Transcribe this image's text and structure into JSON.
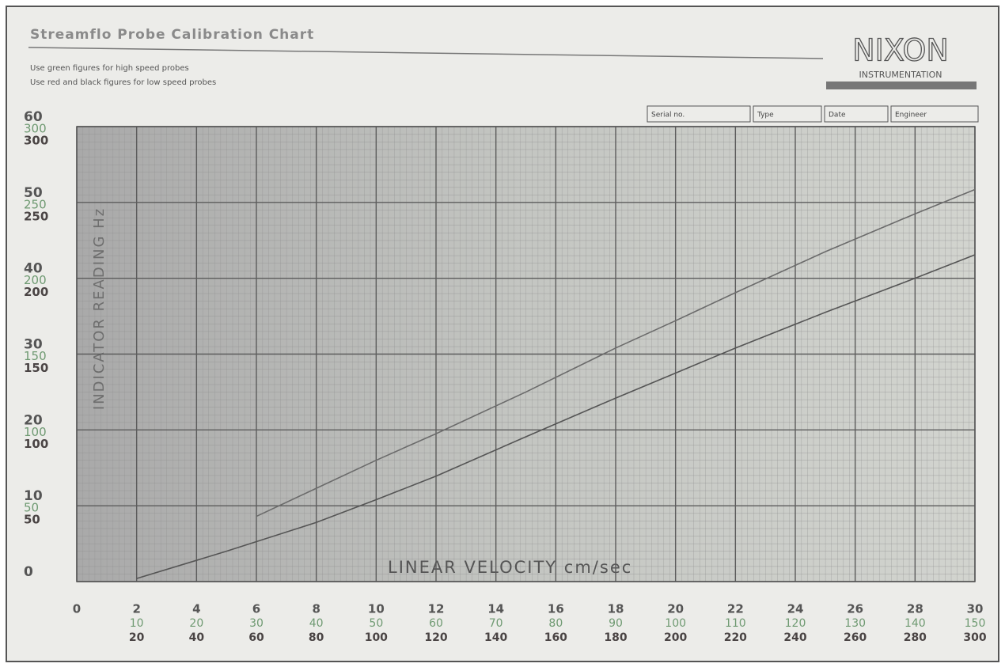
{
  "chart_data": {
    "type": "line",
    "title": "Streamflo Probe Calibration Chart",
    "notes": [
      "Use green figures for high speed probes",
      "Use red and black figures for low speed probes"
    ],
    "logo": "NIXON",
    "logo_sub": "INSTRUMENTATION",
    "form_fields": [
      "Serial no.",
      "Type",
      "Date",
      "Engineer"
    ],
    "xlabel": "LINEAR VELOCITY  cm/sec",
    "ylabel": "INDICATOR READING  Hz",
    "xlim": [
      0,
      30
    ],
    "xticks": [
      0,
      2,
      4,
      6,
      8,
      10,
      12,
      14,
      16,
      18,
      20,
      22,
      24,
      26,
      28,
      30
    ],
    "x2lim": [
      0,
      150
    ],
    "x2ticks": [
      10,
      20,
      30,
      40,
      50,
      60,
      70,
      80,
      90,
      100,
      110,
      120,
      130,
      140,
      150
    ],
    "x2color": "#6f9a72",
    "x3lim": [
      0,
      300
    ],
    "x3ticks": [
      20,
      40,
      60,
      80,
      100,
      120,
      140,
      160,
      180,
      200,
      220,
      240,
      260,
      280,
      300
    ],
    "x3color": "#4a4444",
    "ylim": [
      0,
      60
    ],
    "yticks": [
      0,
      10,
      20,
      30,
      40,
      50,
      60
    ],
    "y2lim": [
      0,
      300
    ],
    "y2ticks": [
      50,
      100,
      150,
      200,
      250,
      300
    ],
    "y2color": "#6f9a72",
    "y3lim": [
      0,
      300
    ],
    "y3ticks": [
      50,
      100,
      150,
      200,
      250,
      300
    ],
    "y3color": "#4a4444",
    "grid": true,
    "series": [
      {
        "color": "#555555",
        "x": [
          2,
          5,
          8,
          10,
          12,
          15,
          18,
          20,
          22,
          25,
          28,
          30
        ],
        "values": [
          0.4,
          4,
          7.8,
          10.8,
          13.9,
          19.1,
          24.2,
          27.5,
          30.8,
          35.5,
          40,
          43.1
        ]
      },
      {
        "color": "#6b6b6b",
        "x": [
          6,
          8,
          10,
          12,
          15,
          18,
          20,
          22,
          25,
          28,
          30
        ],
        "values": [
          8.6,
          12.3,
          16,
          19.5,
          25,
          30.8,
          34.4,
          38.1,
          43.5,
          48.5,
          51.7
        ]
      }
    ]
  }
}
